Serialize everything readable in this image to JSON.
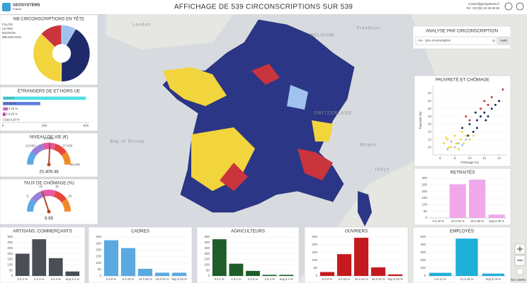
{
  "header": {
    "title": "AFFICHAGE DE 539 CIRCONSCRIPTIONS SUR 539",
    "logo_name": "GEOSYSTEMS",
    "logo_sub": "France",
    "contact_email": "contact@geosystems.fr",
    "contact_phone": "Tel: +33 (0)1 30 45 60 60"
  },
  "map_labels": [
    "BELGIUM",
    "SWITZERLAND",
    "ITALY",
    "London",
    "Frankfurt",
    "Milano",
    "Bay of Biscay"
  ],
  "map_attribution": "Leaflet | HERE",
  "analysis": {
    "title": "ANALYSE PAR CIRCONSCRIPTION",
    "selected": "Ain - 1ère circonscription",
    "button": "Apply"
  },
  "chart_data": [
    {
      "type": "pie",
      "title": "NB CIRCONSCRIPTIONS EN TÊTE",
      "categories": [
        "FILLON",
        "LE PEN",
        "MACRON",
        "MÉLENCHON"
      ],
      "values": [
        45,
        225,
        200,
        69
      ],
      "colors": [
        "#9fc3ee",
        "#1f2a6b",
        "#f2d43c",
        "#c9343d"
      ]
    },
    {
      "type": "hbar",
      "title": "ÉTRANGERS DE ET HORS UE",
      "categories": [
        "0 à 5 %",
        "5 à 10 %",
        "10 à 15 %",
        "15 à 20 %",
        "Sup à 20 %"
      ],
      "values": [
        500,
        225,
        30,
        15,
        5
      ],
      "colors": [
        "#4fe0e6",
        "#5a7be0",
        "#e07ad8",
        "#d22fb4",
        "#c8c8c8"
      ],
      "xlim": [
        0,
        520
      ],
      "xticks": [
        0,
        250,
        500
      ]
    },
    {
      "type": "gauge",
      "title": "NIVEAU DE VIE (€)",
      "values": [
        20409.46
      ],
      "value_labels": [
        "20,409.46"
      ],
      "ylim": [
        6000,
        34000
      ],
      "yticks": [
        {
          "value": 13000,
          "label": "13,000"
        },
        {
          "value": 20000,
          "label": "20,000"
        },
        {
          "value": 27000,
          "label": "27,000"
        },
        {
          "value": 34000,
          "label": "34,000"
        }
      ],
      "colors": [
        "#5aa9e6",
        "#9a7fd8",
        "#e35aa6",
        "#e8453c",
        "#f08a2b"
      ]
    },
    {
      "type": "gauge",
      "title": "TAUX DE CHÔMAGE (%)",
      "values": [
        9.95
      ],
      "ylim": [
        0,
        25
      ],
      "yticks": [
        5,
        10,
        15,
        20
      ],
      "colors": [
        "#5aa9e6",
        "#9a7fd8",
        "#e35aa6",
        "#e8453c",
        "#f08a2b"
      ]
    },
    {
      "type": "scatter",
      "title": "PAUVRETÉ ET CHÔMAGE",
      "x_label": "Chômage (%)",
      "y_label": "Pauvreté (%)",
      "xlim": [
        5,
        15
      ],
      "xticks": [
        6,
        8,
        10,
        12,
        14
      ],
      "ylim": [
        8,
        26
      ],
      "yticks": [
        10,
        12,
        14,
        16,
        18,
        20,
        22,
        24
      ],
      "series": [
        {
          "color": "#f2d43c",
          "x": [
            6.5,
            7,
            7.5,
            8,
            8.2,
            8.8,
            9,
            9.5,
            10,
            7.2,
            8.5,
            9.2,
            10.5,
            6.8
          ],
          "values": [
            11,
            12,
            10,
            13,
            11,
            12,
            14,
            13,
            12,
            10,
            9.5,
            11,
            13,
            12.5
          ]
        },
        {
          "color": "#1f2a6b",
          "x": [
            9,
            10,
            10.5,
            11,
            11.5,
            12,
            12.5,
            13,
            13.5,
            14,
            11,
            12.2,
            9.8,
            10.8
          ],
          "values": [
            15,
            16,
            14,
            17,
            18,
            19,
            18,
            20,
            21,
            22,
            15,
            17,
            13,
            19
          ]
        },
        {
          "color": "#c9343d",
          "x": [
            10,
            11.5,
            12.5,
            13,
            14.5,
            12,
            9.5
          ],
          "values": [
            17,
            20,
            21,
            23,
            25,
            22,
            18
          ]
        },
        {
          "color": "#9fc3ee",
          "x": [
            7,
            8,
            8.5,
            9,
            7.5,
            9.5
          ],
          "values": [
            9.5,
            10,
            11,
            10.5,
            11.5,
            12
          ]
        }
      ]
    },
    {
      "type": "bar",
      "title": "RETRAITÉS",
      "categories": [
        "0 à 10 %",
        "10 à 20 %",
        "20 à 30 %",
        "Sup à 30 %"
      ],
      "values": [
        0,
        255,
        290,
        25
      ],
      "color": "#f0a8ea",
      "ylim": [
        0,
        300
      ],
      "yticks": [
        0,
        50,
        100,
        150,
        200,
        250,
        300
      ]
    },
    {
      "type": "bar",
      "title": "ARTISANS, COMMERÇANTS",
      "categories": [
        "0 à 2 %",
        "2 à 3 %",
        "3 à 4 %",
        "Sup à 4 %"
      ],
      "values": [
        200,
        330,
        160,
        40
      ],
      "color": "#4a4f55",
      "ylim": [
        0,
        350
      ],
      "yticks": [
        0,
        50,
        100,
        150,
        200,
        250,
        300,
        350
      ]
    },
    {
      "type": "bar",
      "title": "CADRES",
      "categories": [
        "0 à 5 %",
        "5 à 10 %",
        "10 à 15 %",
        "15 à 20 %",
        "Sup à 20 %"
      ],
      "values": [
        275,
        215,
        55,
        25,
        25
      ],
      "color": "#5aa9e0",
      "ylim": [
        0,
        300
      ],
      "yticks": [
        0,
        50,
        100,
        150,
        200,
        250,
        300
      ]
    },
    {
      "type": "bar",
      "title": "AGRICULTEURS",
      "categories": [
        "0 à 1 %",
        "1 à 2 %",
        "2 à 3 %",
        "3 à 4 %",
        "Sup à 4 %"
      ],
      "values": [
        330,
        110,
        45,
        10,
        10
      ],
      "color": "#1f5e2a",
      "ylim": [
        0,
        350
      ],
      "yticks": [
        0,
        50,
        100,
        150,
        200,
        250,
        300,
        350
      ]
    },
    {
      "type": "bar",
      "title": "OUVRIERS",
      "categories": [
        "0 à 5 %",
        "5 à 10 %",
        "10 à 15 %",
        "15 à 20 %",
        "Sup à 20 %"
      ],
      "values": [
        25,
        140,
        245,
        55,
        10
      ],
      "color": "#c41a1f",
      "ylim": [
        0,
        250
      ],
      "yticks": [
        0,
        50,
        100,
        150,
        200,
        250
      ]
    },
    {
      "type": "bar",
      "title": "EMPLOYÉS",
      "categories": [
        "0 à 12 %",
        "12 à 16 %",
        "Sup à 16 %"
      ],
      "values": [
        40,
        480,
        30
      ],
      "color": "#1eb0d8",
      "ylim": [
        0,
        500
      ],
      "yticks": [
        0,
        100,
        200,
        300,
        400,
        500
      ]
    }
  ]
}
